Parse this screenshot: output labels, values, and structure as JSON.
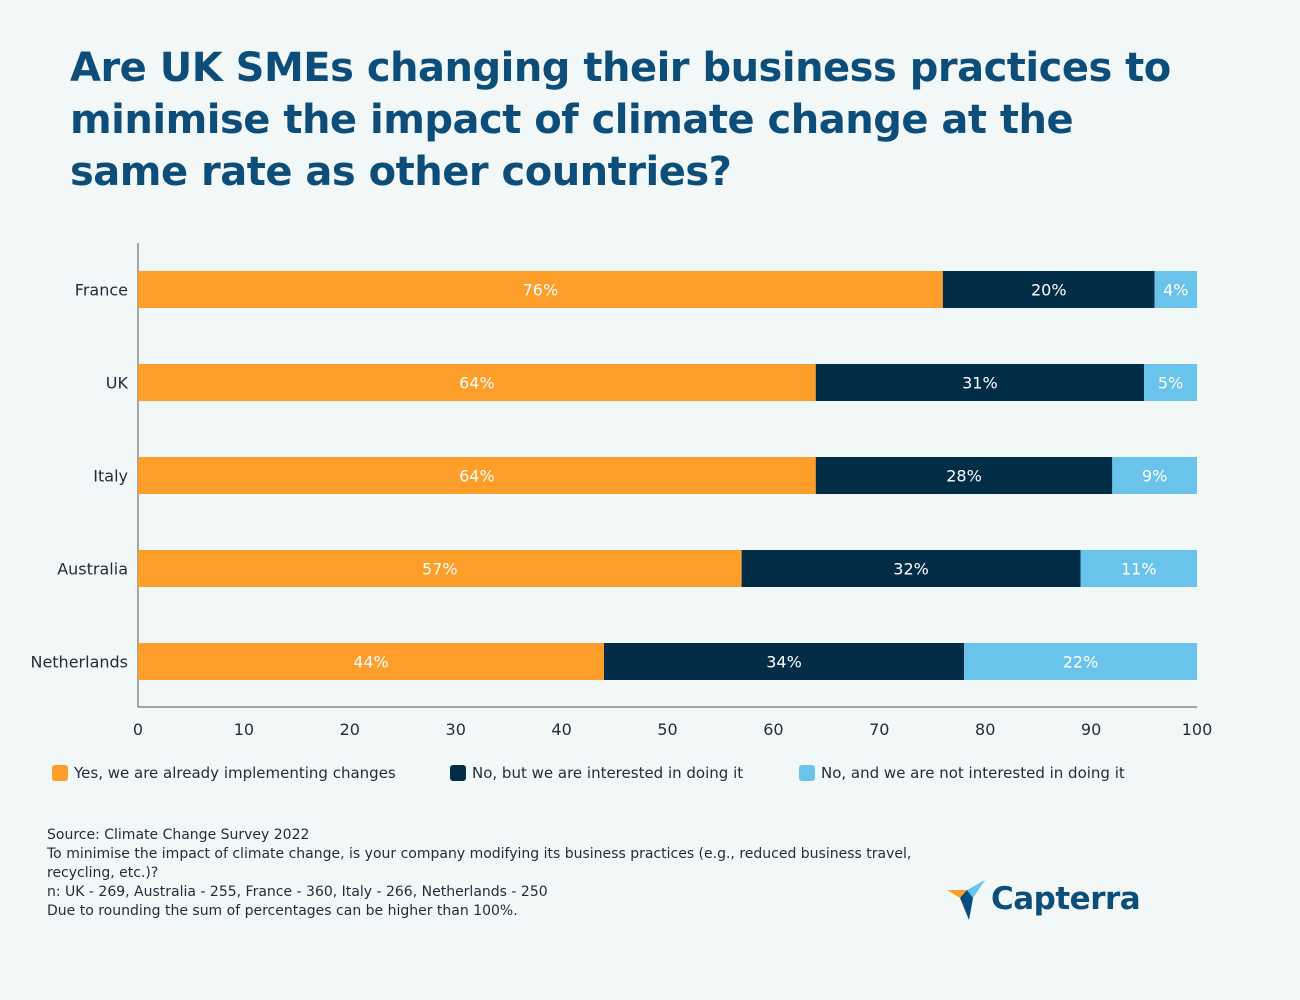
{
  "title": "Are UK SMEs changing their business practices to minimise the impact of climate change at the same rate as other countries?",
  "colors": {
    "yes": "#fd9e2b",
    "interested": "#022d46",
    "not_interested": "#6ac3ea",
    "axis": "#555555",
    "title": "#0d4d79"
  },
  "chart_data": {
    "type": "bar",
    "orientation": "horizontal",
    "stacked": true,
    "categories": [
      "France",
      "UK",
      "Italy",
      "Australia",
      "Netherlands"
    ],
    "series": [
      {
        "name": "Yes, we are already implementing changes",
        "color_key": "yes",
        "values": [
          76,
          64,
          64,
          57,
          44
        ],
        "labels": [
          "76%",
          "64%",
          "64%",
          "57%",
          "44%"
        ]
      },
      {
        "name": "No, but we are interested in doing it",
        "color_key": "interested",
        "values": [
          20,
          31,
          28,
          32,
          34
        ],
        "labels": [
          "20%",
          "31%",
          "28%",
          "32%",
          "34%"
        ]
      },
      {
        "name": "No, and we are not interested in doing it",
        "color_key": "not_interested",
        "values": [
          4,
          5,
          9,
          11,
          22
        ],
        "labels": [
          "4%",
          "5%",
          "9%",
          "11%",
          "22%"
        ]
      }
    ],
    "xlim": [
      0,
      100
    ],
    "xticks": [
      0,
      10,
      20,
      30,
      40,
      50,
      60,
      70,
      80,
      90,
      100
    ],
    "grid": false,
    "legend_position": "bottom"
  },
  "footnotes": [
    "Source: Climate Change Survey 2022",
    "To minimise the impact of climate change, is your company modifying its business practices (e.g., reduced business travel, recycling, etc.)?",
    "n: UK - 269, Australia - 255, France - 360, Italy - 266, Netherlands - 250",
    "Due to rounding the sum of percentages can be higher than 100%."
  ],
  "logo": {
    "text": "Capterra"
  }
}
